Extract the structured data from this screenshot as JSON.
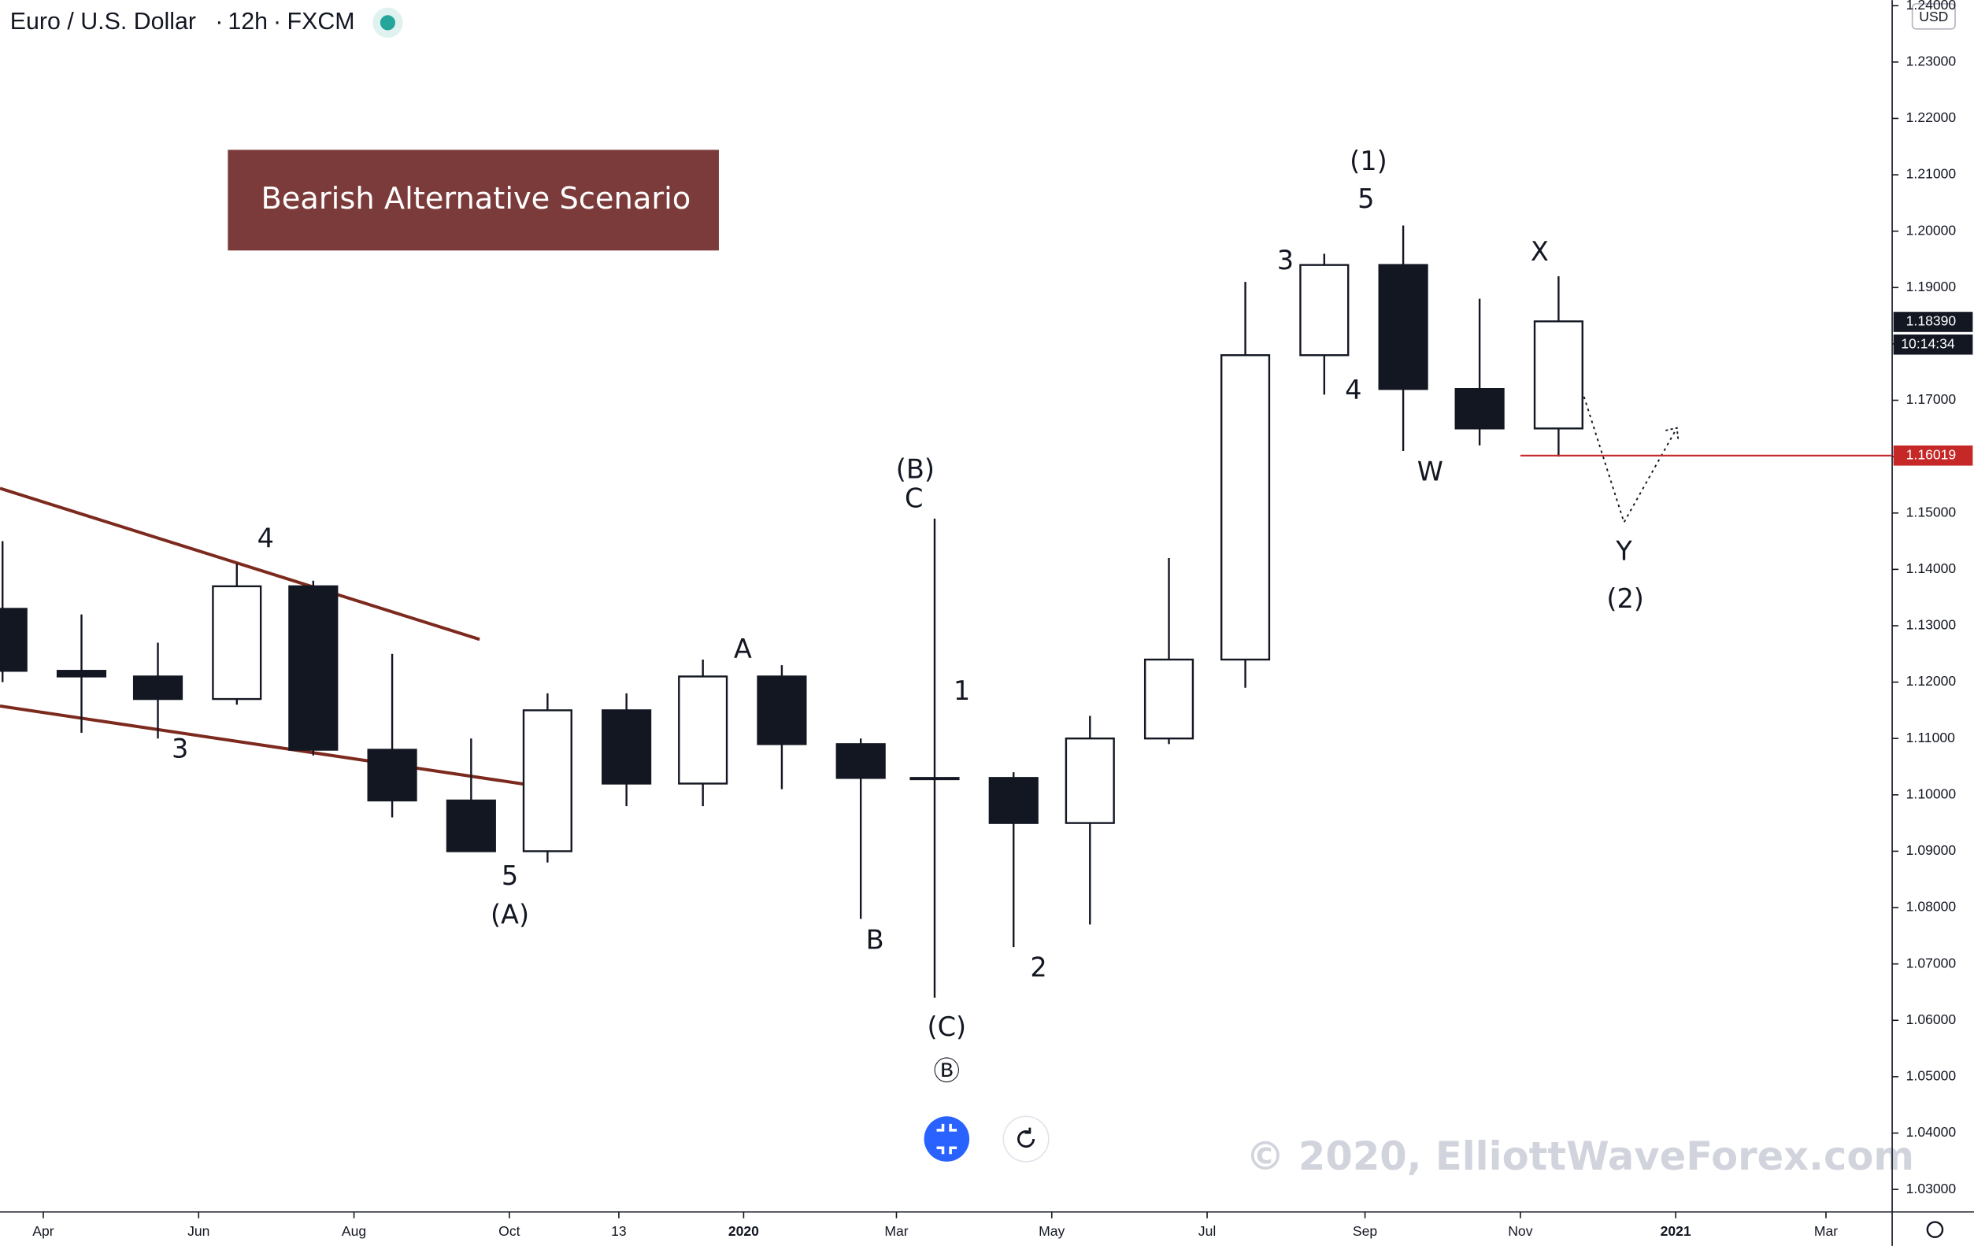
{
  "chart_data": {
    "type": "candlestick",
    "title": "Euro / U.S. Dollar",
    "interval": "12h",
    "source": "FXCM",
    "currency": "USD",
    "banner": "Bearish Alternative Scenario",
    "watermark": "© 2020, ElliottWaveForex.com",
    "x": [
      "2019-03",
      "2019-04",
      "2019-05",
      "2019-06",
      "2019-07",
      "2019-08",
      "2019-09",
      "2019-10",
      "2019-11",
      "2019-12",
      "2020-01",
      "2020-02",
      "2020-03",
      "2020-04",
      "2020-05",
      "2020-06",
      "2020-07",
      "2020-08",
      "2020-09",
      "2020-10",
      "2020-11"
    ],
    "open": [
      1.133,
      1.122,
      1.121,
      1.117,
      1.137,
      1.108,
      1.099,
      1.09,
      1.115,
      1.102,
      1.121,
      1.109,
      1.103,
      1.103,
      1.095,
      1.11,
      1.124,
      1.178,
      1.194,
      1.172,
      1.165
    ],
    "high": [
      1.145,
      1.132,
      1.127,
      1.141,
      1.138,
      1.125,
      1.11,
      1.118,
      1.118,
      1.124,
      1.123,
      1.11,
      1.149,
      1.104,
      1.114,
      1.142,
      1.191,
      1.196,
      1.201,
      1.188,
      1.192
    ],
    "low": [
      1.12,
      1.111,
      1.11,
      1.116,
      1.107,
      1.096,
      1.09,
      1.088,
      1.098,
      1.098,
      1.101,
      1.078,
      1.064,
      1.073,
      1.077,
      1.109,
      1.119,
      1.171,
      1.161,
      1.162,
      1.16
    ],
    "close": [
      1.122,
      1.121,
      1.117,
      1.137,
      1.108,
      1.099,
      1.09,
      1.115,
      1.102,
      1.121,
      1.109,
      1.103,
      1.103,
      1.095,
      1.11,
      1.124,
      1.178,
      1.194,
      1.172,
      1.165,
      1.184
    ],
    "color": "#131722",
    "xlim": [
      "2019-03-15",
      "2021-03-27"
    ],
    "xticks": [
      {
        "value": "2019-04",
        "label": "Apr"
      },
      {
        "value": "2019-06",
        "label": "Jun"
      },
      {
        "value": "2019-08",
        "label": "Aug"
      },
      {
        "value": "2019-10",
        "label": "Oct"
      },
      {
        "value": "2019-11-13",
        "label": "13"
      },
      {
        "value": "2020-01",
        "label": "2020"
      },
      {
        "value": "2020-03",
        "label": "Mar"
      },
      {
        "value": "2020-05",
        "label": "May"
      },
      {
        "value": "2020-07",
        "label": "Jul"
      },
      {
        "value": "2020-09",
        "label": "Sep"
      },
      {
        "value": "2020-11",
        "label": "Nov"
      },
      {
        "value": "2021-01",
        "label": "2021"
      },
      {
        "value": "2021-03",
        "label": "Mar"
      }
    ],
    "ylim": [
      1.026,
      1.241
    ],
    "yticks": [
      {
        "value": 1.03,
        "label": "1.03000"
      },
      {
        "value": 1.04,
        "label": "1.04000"
      },
      {
        "value": 1.05,
        "label": "1.05000"
      },
      {
        "value": 1.06,
        "label": "1.06000"
      },
      {
        "value": 1.07,
        "label": "1.07000"
      },
      {
        "value": 1.08,
        "label": "1.08000"
      },
      {
        "value": 1.09,
        "label": "1.09000"
      },
      {
        "value": 1.1,
        "label": "1.10000"
      },
      {
        "value": 1.11,
        "label": "1.11000"
      },
      {
        "value": 1.12,
        "label": "1.12000"
      },
      {
        "value": 1.13,
        "label": "1.13000"
      },
      {
        "value": 1.14,
        "label": "1.14000"
      },
      {
        "value": 1.15,
        "label": "1.15000"
      },
      {
        "value": 1.16,
        "label": "1.16000"
      },
      {
        "value": 1.17,
        "label": "1.17000"
      },
      {
        "value": 1.18,
        "label": "1.18000"
      },
      {
        "value": 1.19,
        "label": "1.19000"
      },
      {
        "value": 1.2,
        "label": "1.20000"
      },
      {
        "value": 1.21,
        "label": "1.21000"
      },
      {
        "value": 1.22,
        "label": "1.22000"
      },
      {
        "value": 1.23,
        "label": "1.23000"
      },
      {
        "value": 1.24,
        "label": "1.24000"
      }
    ],
    "last_price": {
      "value": 1.1839,
      "label": "1.18390"
    },
    "countdown": "10:14:34",
    "level": {
      "value": 1.16019,
      "label": "1.16019",
      "color": "#c62828"
    },
    "annotations": [
      "4",
      "3",
      "5",
      "(A)",
      "A",
      "B",
      "(B)",
      "C",
      "1",
      "2",
      "(C)",
      "Ⓑ",
      "3",
      "(1)",
      "5",
      "4",
      "W",
      "X",
      "Y",
      "(2)"
    ]
  }
}
